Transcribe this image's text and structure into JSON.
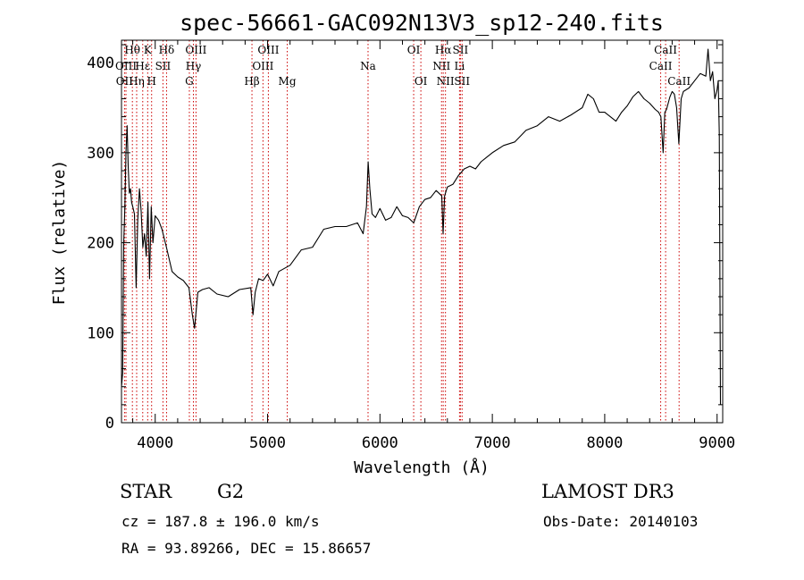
{
  "chart_data": {
    "type": "line",
    "title": "spec-56661-GAC092N13V3_sp12-240.fits",
    "xlabel": "Wavelength (Å)",
    "ylabel": "Flux (relative)",
    "xlim": [
      3700,
      9050
    ],
    "ylim": [
      0,
      425
    ],
    "xticks": [
      4000,
      5000,
      6000,
      7000,
      8000,
      9000
    ],
    "yticks": [
      0,
      100,
      200,
      300,
      400
    ],
    "grid": false,
    "series": [
      {
        "name": "flux",
        "x": [
          3700,
          3710,
          3720,
          3730,
          3740,
          3750,
          3760,
          3770,
          3780,
          3790,
          3800,
          3815,
          3830,
          3845,
          3860,
          3875,
          3890,
          3905,
          3920,
          3935,
          3950,
          3965,
          3980,
          4000,
          4030,
          4060,
          4100,
          4150,
          4200,
          4250,
          4300,
          4330,
          4350,
          4380,
          4420,
          4480,
          4550,
          4650,
          4750,
          4850,
          4870,
          4890,
          4920,
          4960,
          5000,
          5050,
          5100,
          5200,
          5300,
          5400,
          5500,
          5600,
          5700,
          5800,
          5850,
          5880,
          5895,
          5910,
          5930,
          5960,
          6000,
          6050,
          6100,
          6150,
          6200,
          6250,
          6300,
          6350,
          6400,
          6450,
          6500,
          6550,
          6562,
          6575,
          6600,
          6650,
          6700,
          6750,
          6800,
          6850,
          6900,
          6950,
          7000,
          7100,
          7200,
          7300,
          7400,
          7500,
          7600,
          7700,
          7800,
          7850,
          7900,
          7950,
          8000,
          8050,
          8100,
          8150,
          8200,
          8250,
          8300,
          8350,
          8400,
          8450,
          8480,
          8500,
          8520,
          8535,
          8550,
          8580,
          8600,
          8620,
          8640,
          8660,
          8680,
          8700,
          8750,
          8800,
          8850,
          8900,
          8920,
          8940,
          8960,
          8980,
          9000,
          9010,
          9020,
          9030
        ],
        "values": [
          40,
          55,
          200,
          240,
          300,
          330,
          285,
          255,
          260,
          245,
          240,
          232,
          150,
          225,
          260,
          235,
          195,
          210,
          185,
          245,
          160,
          240,
          200,
          230,
          225,
          215,
          195,
          168,
          162,
          158,
          150,
          120,
          105,
          145,
          148,
          150,
          143,
          140,
          148,
          150,
          120,
          145,
          160,
          158,
          165,
          152,
          168,
          175,
          192,
          195,
          215,
          218,
          218,
          222,
          210,
          240,
          290,
          260,
          232,
          228,
          238,
          225,
          228,
          240,
          230,
          228,
          222,
          240,
          248,
          250,
          258,
          252,
          210,
          252,
          262,
          265,
          275,
          282,
          285,
          282,
          290,
          295,
          300,
          308,
          312,
          325,
          330,
          340,
          335,
          342,
          350,
          365,
          360,
          345,
          345,
          340,
          335,
          345,
          352,
          362,
          368,
          360,
          355,
          348,
          345,
          340,
          300,
          345,
          348,
          362,
          368,
          365,
          350,
          310,
          360,
          368,
          372,
          380,
          388,
          385,
          415,
          380,
          390,
          360,
          370,
          380,
          320,
          20
        ]
      }
    ],
    "spectral_lines": [
      {
        "name": "OII",
        "x": 3727,
        "row": 2
      },
      {
        "name": "OIII",
        "x": 3740,
        "row": 1
      },
      {
        "name": "Hθ",
        "x": 3797,
        "row": 0
      },
      {
        "name": "Hη",
        "x": 3835,
        "row": 2
      },
      {
        "name": "Hε",
        "x": 3889,
        "row": 1
      },
      {
        "name": "K",
        "x": 3933,
        "row": 0
      },
      {
        "name": "H",
        "x": 3968,
        "row": 2
      },
      {
        "name": "SII",
        "x": 4069,
        "row": 1
      },
      {
        "name": "Hδ",
        "x": 4101,
        "row": 0
      },
      {
        "name": "G",
        "x": 4304,
        "row": 2
      },
      {
        "name": "Hγ",
        "x": 4340,
        "row": 1
      },
      {
        "name": "OIII",
        "x": 4363,
        "row": 0
      },
      {
        "name": "Hβ",
        "x": 4861,
        "row": 2
      },
      {
        "name": "OIII",
        "x": 4959,
        "row": 1
      },
      {
        "name": "OIII",
        "x": 5007,
        "row": 0
      },
      {
        "name": "Mg",
        "x": 5175,
        "row": 2
      },
      {
        "name": "Na",
        "x": 5894,
        "row": 1
      },
      {
        "name": "OI",
        "x": 6300,
        "row": 0
      },
      {
        "name": "OI",
        "x": 6364,
        "row": 2
      },
      {
        "name": "NII",
        "x": 6548,
        "row": 1
      },
      {
        "name": "Hα",
        "x": 6563,
        "row": 0
      },
      {
        "name": "NII",
        "x": 6583,
        "row": 2
      },
      {
        "name": "Li",
        "x": 6708,
        "row": 1
      },
      {
        "name": "SII",
        "x": 6716,
        "row": 0
      },
      {
        "name": "SII",
        "x": 6731,
        "row": 2
      },
      {
        "name": "CaII",
        "x": 8498,
        "row": 1
      },
      {
        "name": "CaII",
        "x": 8542,
        "row": 0
      },
      {
        "name": "CaII",
        "x": 8662,
        "row": 2
      }
    ],
    "line_color": "#000000",
    "marker_color": "#cc0000"
  },
  "info": {
    "object_class": "STAR",
    "subclass": "G2",
    "velocity": "cz = 187.8 ± 196.0 km/s",
    "coordinates": "RA =  93.89266, DEC =  15.86657",
    "survey": "LAMOST DR3",
    "obs_date": "Obs-Date: 20140103"
  }
}
